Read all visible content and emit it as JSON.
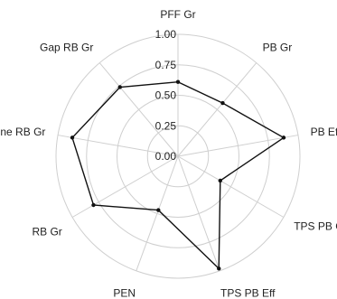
{
  "chart_data": {
    "type": "radar",
    "categories": [
      "PFF Gr",
      "PB Gr",
      "PB Eff",
      "TPS PB Gr",
      "TPS PB Eff",
      "PEN",
      "RB Gr",
      "Zone RB Gr",
      "Gap RB Gr"
    ],
    "values": [
      0.61,
      0.57,
      0.88,
      0.4,
      0.98,
      0.47,
      0.8,
      0.88,
      0.74
    ],
    "radial_ticks": [
      "0.00",
      "0.25",
      "0.50",
      "0.75",
      "1.00"
    ],
    "rlim": [
      0,
      1
    ],
    "grid": true,
    "title": ""
  }
}
